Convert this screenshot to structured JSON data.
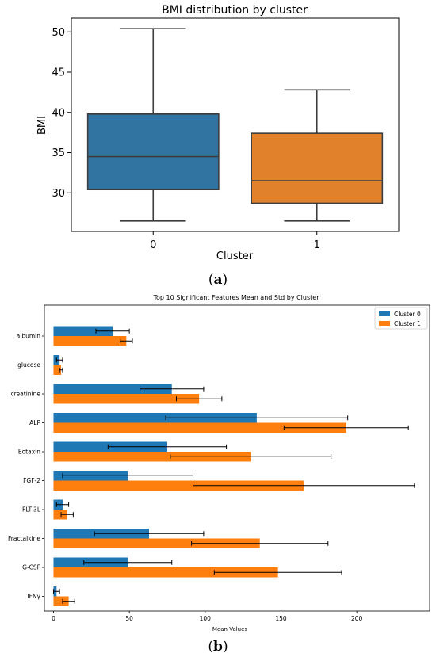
{
  "panel_labels": {
    "a": {
      "open": "(",
      "letter": "a",
      "close": ")"
    },
    "b": {
      "open": "(",
      "letter": "b",
      "close": ")"
    }
  },
  "chart_data": [
    {
      "type": "box",
      "title": "BMI distribution by cluster",
      "xlabel": "Cluster",
      "ylabel": "BMI",
      "categories": [
        "0",
        "1"
      ],
      "ylim": [
        25.2,
        51.7
      ],
      "yticks": [
        30,
        35,
        40,
        45,
        50
      ],
      "boxes": [
        {
          "category": "0",
          "whisker_low": 26.5,
          "q1": 30.4,
          "median": 34.5,
          "q3": 39.8,
          "whisker_high": 50.4,
          "color": "#3274a1"
        },
        {
          "category": "1",
          "whisker_low": 26.5,
          "q1": 28.7,
          "median": 31.5,
          "q3": 37.4,
          "whisker_high": 42.8,
          "color": "#e1812c"
        }
      ],
      "grid": false
    },
    {
      "type": "bar",
      "orientation": "horizontal",
      "title": "Top 10 Significant Features Mean and Std by Cluster",
      "xlabel": "Mean Values",
      "ylabel": "",
      "xlim": [
        -6,
        248
      ],
      "xticks": [
        0,
        50,
        100,
        150,
        200
      ],
      "legend_position": "top-right",
      "categories": [
        "albumin",
        "glucose",
        "creatinine",
        "ALP",
        "Eotaxin",
        "FGF-2",
        "FLT-3L",
        "Fractalkine",
        "G-CSF",
        "IFNγ"
      ],
      "series": [
        {
          "name": "Cluster 0",
          "color": "#1f77b4",
          "values": [
            39,
            4,
            78,
            134,
            75,
            49,
            6,
            63,
            49,
            2
          ],
          "std": [
            11,
            2,
            21,
            60,
            39,
            43,
            4,
            36,
            29,
            2
          ]
        },
        {
          "name": "Cluster 1",
          "color": "#ff7f0e",
          "values": [
            48,
            5,
            96,
            193,
            130,
            165,
            9,
            136,
            148,
            10
          ],
          "std": [
            4,
            1,
            15,
            41,
            53,
            73,
            4,
            45,
            42,
            4
          ]
        }
      ],
      "grid": false
    }
  ]
}
